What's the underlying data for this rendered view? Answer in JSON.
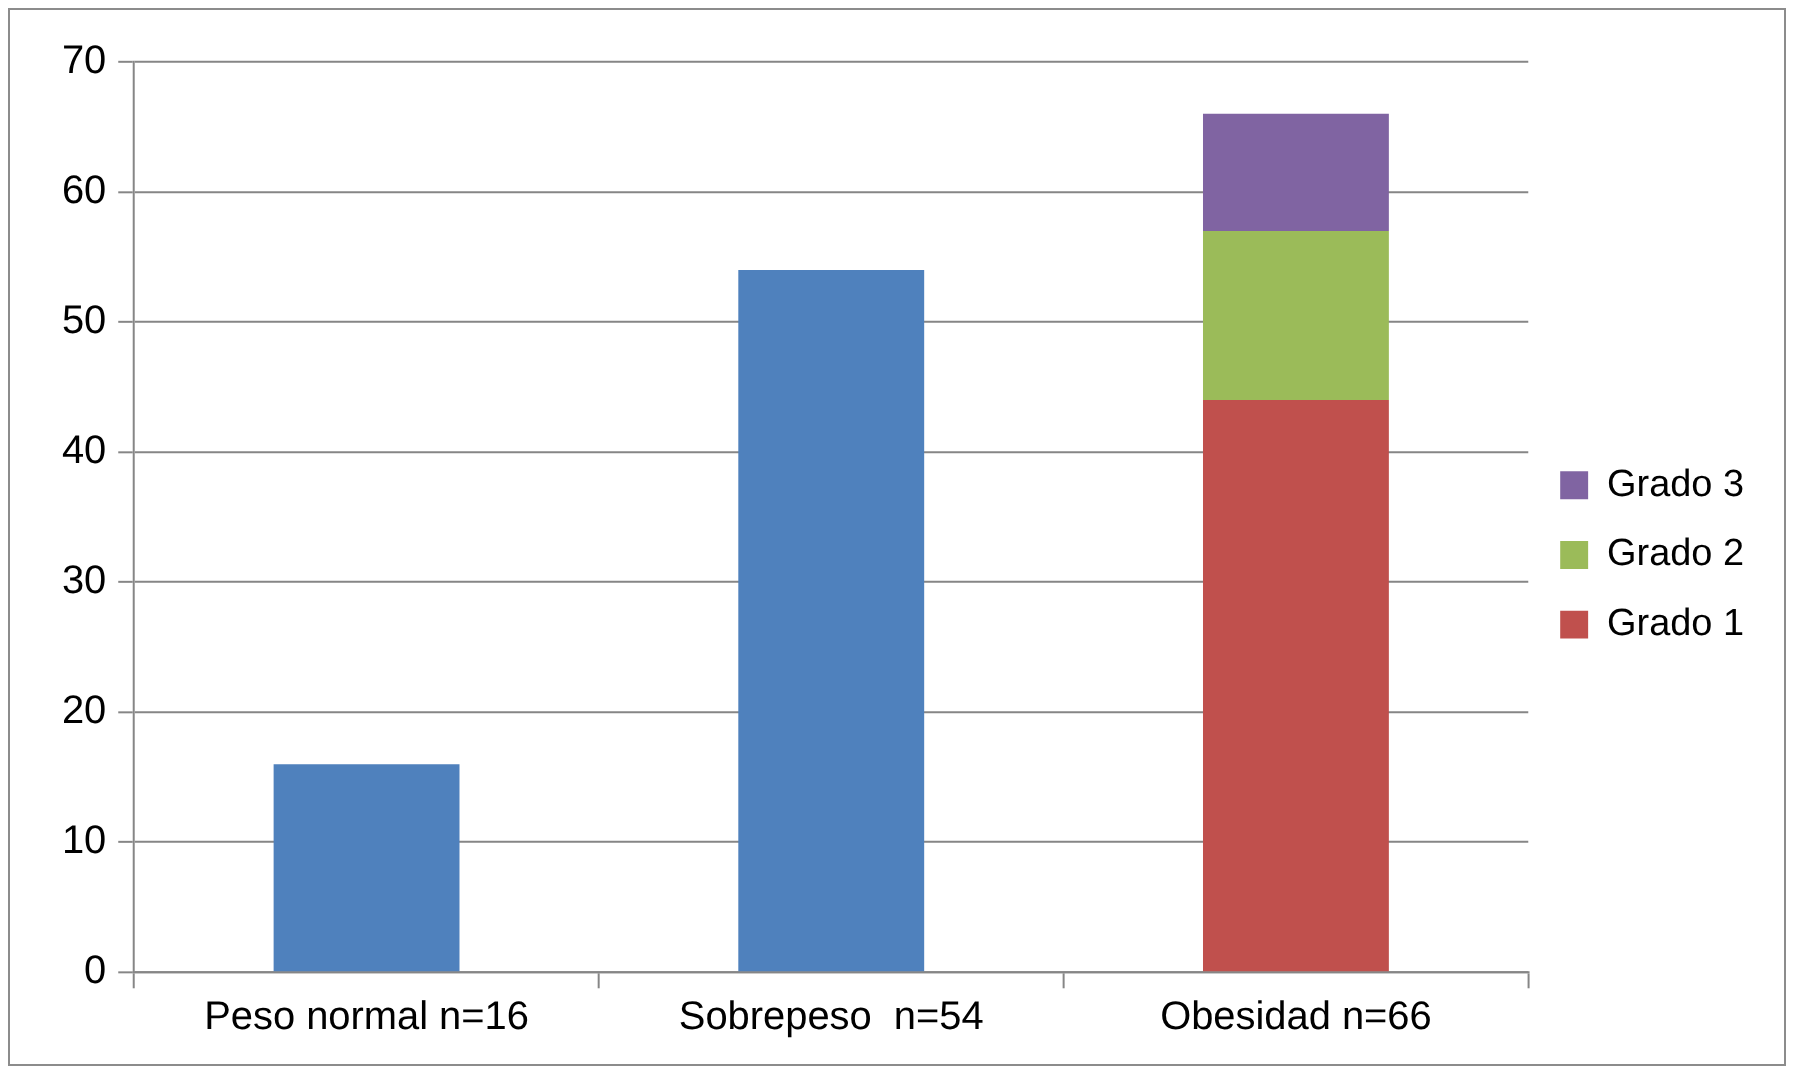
{
  "chart_data": {
    "type": "bar",
    "stacked": true,
    "categories": [
      "Peso normal n=16",
      "Sobrepeso  n=54",
      "Obesidad n=66"
    ],
    "series": [
      {
        "color": "#4f81bd",
        "values": [
          16,
          54,
          null
        ]
      },
      {
        "name": "Grado 1",
        "color": "#c0504d",
        "values": [
          null,
          null,
          44
        ]
      },
      {
        "name": "Grado 2",
        "color": "#9bbb59",
        "values": [
          null,
          null,
          13
        ]
      },
      {
        "name": "Grado 3",
        "color": "#8064a2",
        "values": [
          null,
          null,
          9
        ]
      }
    ],
    "ylim": [
      0,
      70
    ],
    "yticks": [
      0,
      10,
      20,
      30,
      40,
      50,
      60,
      70
    ],
    "grid": "y",
    "legend": "right"
  }
}
